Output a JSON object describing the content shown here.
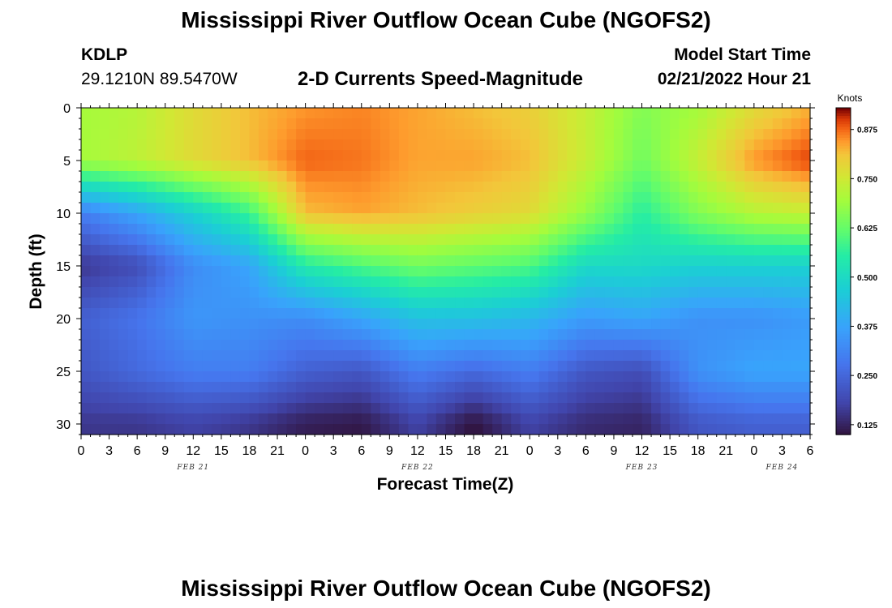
{
  "header": {
    "title": "Mississippi River Outflow Ocean Cube (NGOFS2)",
    "station_id": "KDLP",
    "station_coords": "29.1210N  89.5470W",
    "subtitle": "2-D Currents Speed-Magnitude",
    "model_start_label": "Model Start Time",
    "model_start_value": "02/21/2022 Hour 21"
  },
  "footer": {
    "title": "Mississippi River Outflow Ocean Cube (NGOFS2)"
  },
  "chart_data": {
    "type": "heatmap",
    "title": "2-D Currents Speed-Magnitude",
    "xlabel": "Forecast Time(Z)",
    "ylabel": "Depth (ft)",
    "x_tick_labels": [
      "0",
      "3",
      "6",
      "9",
      "12",
      "15",
      "18",
      "21",
      "0",
      "3",
      "6",
      "9",
      "12",
      "15",
      "18",
      "21",
      "0",
      "3",
      "6",
      "9",
      "12",
      "15",
      "18",
      "21",
      "0",
      "3",
      "6"
    ],
    "date_labels": [
      {
        "text": "FEB 21",
        "x_hour": 12
      },
      {
        "text": "FEB 22",
        "x_hour": 36
      },
      {
        "text": "FEB 23",
        "x_hour": 60
      },
      {
        "text": "FEB 24",
        "x_hour": 75
      }
    ],
    "xlim": [
      0,
      78
    ],
    "y_tick_labels": [
      "0",
      "5",
      "10",
      "15",
      "20",
      "25",
      "30"
    ],
    "ylim": [
      0,
      31
    ],
    "y_inverted": true,
    "colorbar": {
      "label": "Knots",
      "ticks": [
        "0.125",
        "0.250",
        "0.375",
        "0.500",
        "0.625",
        "0.750",
        "0.875"
      ],
      "range": [
        0.1,
        0.93
      ]
    },
    "time_hours": [
      0,
      6,
      12,
      18,
      24,
      30,
      36,
      42,
      48,
      54,
      60,
      66,
      72,
      78
    ],
    "depth_ft": [
      0,
      5,
      10,
      15,
      20,
      25,
      30
    ],
    "speed_knots": [
      [
        0.7,
        0.72,
        0.78,
        0.82,
        0.85,
        0.86,
        0.84,
        0.82,
        0.8,
        0.74,
        0.66,
        0.7,
        0.78,
        0.83
      ],
      [
        0.7,
        0.73,
        0.78,
        0.82,
        0.88,
        0.87,
        0.84,
        0.84,
        0.82,
        0.74,
        0.64,
        0.74,
        0.85,
        0.9
      ],
      [
        0.3,
        0.38,
        0.48,
        0.58,
        0.82,
        0.84,
        0.82,
        0.8,
        0.78,
        0.68,
        0.56,
        0.66,
        0.72,
        0.74
      ],
      [
        0.16,
        0.2,
        0.33,
        0.38,
        0.55,
        0.6,
        0.64,
        0.62,
        0.6,
        0.5,
        0.5,
        0.48,
        0.48,
        0.48
      ],
      [
        0.24,
        0.28,
        0.35,
        0.34,
        0.33,
        0.38,
        0.44,
        0.44,
        0.42,
        0.36,
        0.38,
        0.34,
        0.34,
        0.36
      ],
      [
        0.22,
        0.26,
        0.3,
        0.3,
        0.24,
        0.22,
        0.3,
        0.26,
        0.3,
        0.22,
        0.2,
        0.34,
        0.38,
        0.38
      ],
      [
        0.16,
        0.16,
        0.18,
        0.16,
        0.12,
        0.11,
        0.18,
        0.1,
        0.18,
        0.14,
        0.13,
        0.22,
        0.24,
        0.24
      ]
    ]
  }
}
